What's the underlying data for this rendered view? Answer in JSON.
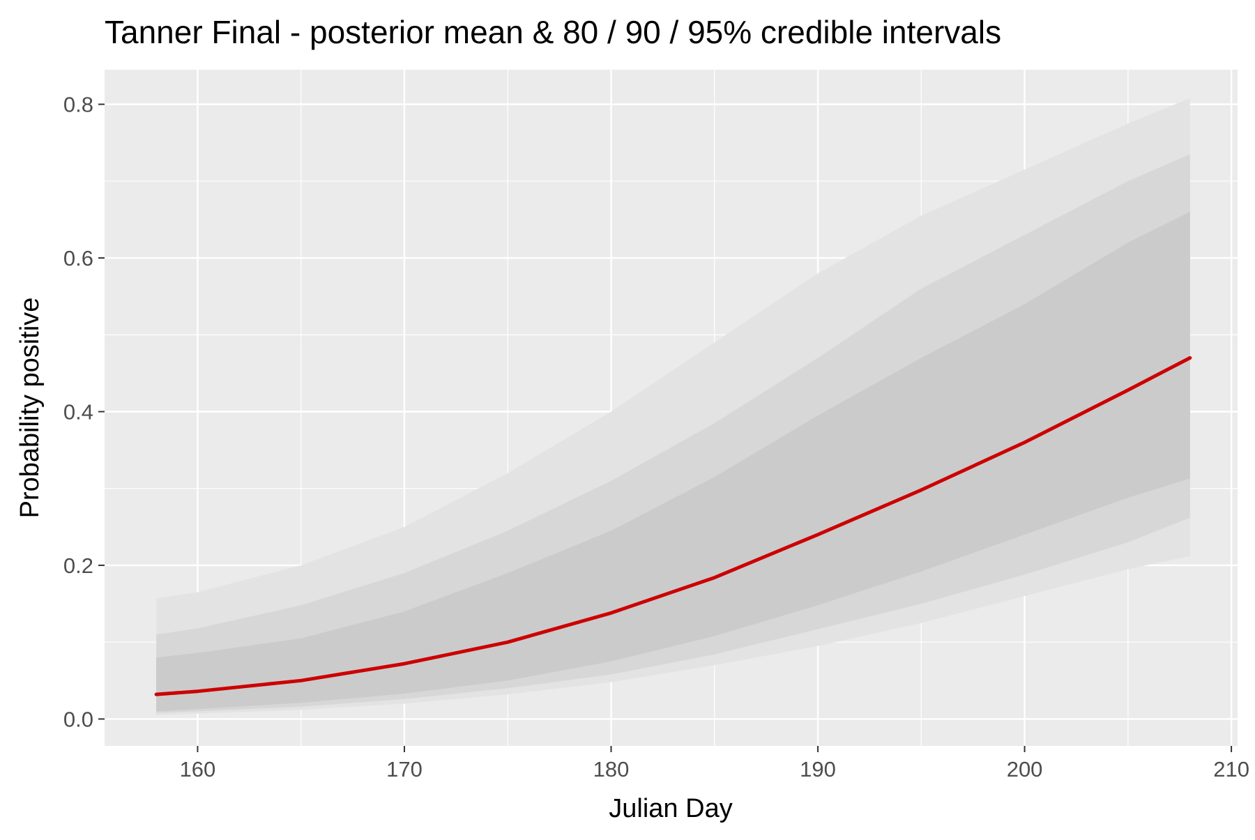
{
  "chart_data": {
    "type": "area",
    "title": "Tanner Final - posterior mean & 80 / 90 / 95% credible intervals",
    "xlabel": "Julian Day",
    "ylabel": "Probability positive",
    "xlim": [
      155.5,
      210.3
    ],
    "ylim": [
      -0.035,
      0.845
    ],
    "x_ticks": [
      160,
      170,
      180,
      190,
      200,
      210
    ],
    "y_ticks": [
      0.0,
      0.2,
      0.4,
      0.6,
      0.8
    ],
    "x_tick_labels": [
      "160",
      "170",
      "180",
      "190",
      "200",
      "210"
    ],
    "y_tick_labels": [
      "0.0",
      "0.2",
      "0.4",
      "0.6",
      "0.8"
    ],
    "grid": true,
    "legend": "none",
    "colors": {
      "panel_background": "#ebebeb",
      "grid": "#ffffff",
      "band_95": "#e3e3e3",
      "band_90": "#d7d7d7",
      "band_80": "#cbcbcb",
      "mean_line": "#cc0000"
    },
    "x": [
      158,
      160,
      165,
      170,
      175,
      180,
      185,
      190,
      195,
      200,
      205,
      208
    ],
    "series": [
      {
        "name": "95%",
        "band": true,
        "lower": [
          0.005,
          0.007,
          0.012,
          0.02,
          0.032,
          0.048,
          0.07,
          0.095,
          0.125,
          0.16,
          0.195,
          0.212
        ],
        "upper": [
          0.157,
          0.165,
          0.2,
          0.25,
          0.32,
          0.4,
          0.49,
          0.58,
          0.655,
          0.715,
          0.775,
          0.808
        ]
      },
      {
        "name": "90%",
        "band": true,
        "lower": [
          0.008,
          0.01,
          0.016,
          0.026,
          0.04,
          0.058,
          0.084,
          0.117,
          0.15,
          0.188,
          0.23,
          0.262
        ],
        "upper": [
          0.11,
          0.118,
          0.148,
          0.19,
          0.245,
          0.31,
          0.385,
          0.47,
          0.56,
          0.63,
          0.7,
          0.735
        ]
      },
      {
        "name": "80%",
        "band": true,
        "lower": [
          0.01,
          0.013,
          0.021,
          0.033,
          0.05,
          0.075,
          0.108,
          0.148,
          0.192,
          0.24,
          0.288,
          0.313
        ],
        "upper": [
          0.08,
          0.086,
          0.105,
          0.14,
          0.19,
          0.245,
          0.315,
          0.395,
          0.47,
          0.54,
          0.62,
          0.66
        ]
      },
      {
        "name": "posterior mean",
        "band": false,
        "values": [
          0.032,
          0.036,
          0.05,
          0.072,
          0.1,
          0.138,
          0.184,
          0.24,
          0.298,
          0.36,
          0.428,
          0.47
        ]
      }
    ]
  }
}
